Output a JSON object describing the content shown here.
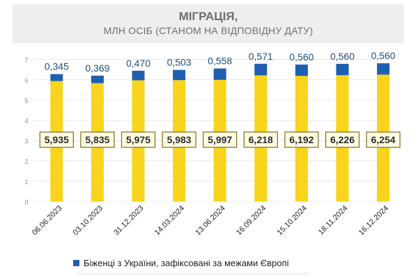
{
  "header": {
    "title": "МІГРАЦІЯ,",
    "subtitle": "МЛН ОСІБ (СТАНОМ НА ВІДПОВІДНУ ДАТУ)"
  },
  "colors": {
    "abroad": "#1f5fb0",
    "europe": "#f9d41c",
    "value_label": "#1f4e79",
    "box_border": "#7f6a1e",
    "axis_text": "#8a8a8a",
    "gridline": "#d9d9d9"
  },
  "legend": {
    "items": [
      {
        "label": "Біженці з України, зафіксовані за межами Європі",
        "color": "#1f5fb0"
      }
    ]
  },
  "chart_data": {
    "type": "bar",
    "stacked": true,
    "categories": [
      "06.06.2023",
      "03.10.2023",
      "31.12.2023",
      "14.03.2024",
      "13.06.2024",
      "16.09.2024",
      "15.10.2024",
      "18.11.2024",
      "16.12.2024"
    ],
    "series": [
      {
        "key": "europe",
        "values": [
          5.935,
          5.835,
          5.975,
          5.983,
          5.997,
          6.218,
          6.192,
          6.226,
          6.254
        ]
      },
      {
        "key": "abroad",
        "name": "Біженці з України, зафіксовані за межами Європі",
        "values": [
          0.345,
          0.369,
          0.47,
          0.503,
          0.558,
          0.571,
          0.56,
          0.56,
          0.56
        ]
      }
    ],
    "data_labels": {
      "europe": [
        "5,935",
        "5,835",
        "5,975",
        "5,983",
        "5,997",
        "6,218",
        "6,192",
        "6,226",
        "6,254"
      ],
      "abroad": [
        "0,345",
        "0,369",
        "0,470",
        "0,503",
        "0,558",
        "0,571",
        "0,560",
        "0,560",
        "0,560"
      ]
    },
    "y_ticks": [
      "0",
      "1",
      "2",
      "3",
      "4",
      "5",
      "6",
      "7"
    ],
    "ylim": [
      0,
      7
    ],
    "grid": true,
    "legend_position": "bottom"
  }
}
